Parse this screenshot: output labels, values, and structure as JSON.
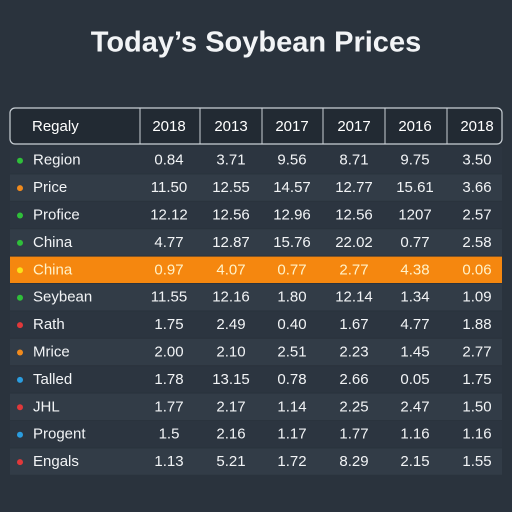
{
  "header": {
    "title": "Today’s Soybean Prices"
  },
  "table": {
    "columns": [
      "Regaly",
      "2018",
      "2013",
      "2017",
      "2017",
      "2016",
      "2018"
    ],
    "highlight_row": 4,
    "highlight_color": "#f5870f",
    "rows": [
      {
        "dot": "#2fbf3a",
        "cells": [
          "Region",
          "0.84",
          "3.71",
          "9.56",
          "8.71",
          "9.75",
          "3.50"
        ]
      },
      {
        "dot": "#f08a1c",
        "cells": [
          "Price",
          "11.50",
          "12.55",
          "14.57",
          "12.77",
          "15.61",
          "3.66"
        ]
      },
      {
        "dot": "#2fbf3a",
        "cells": [
          "Profice",
          "12.12",
          "12.56",
          "12.96",
          "12.56",
          "1207",
          "2.57"
        ]
      },
      {
        "dot": "#2fbf3a",
        "cells": [
          "China",
          "4.77",
          "12.87",
          "15.76",
          "22.02",
          "0.77",
          "2.58"
        ]
      },
      {
        "dot": "#f7e21a",
        "cells": [
          "China",
          "0.97",
          "4.07",
          "0.77",
          "2.77",
          "4.38",
          "0.06"
        ]
      },
      {
        "dot": "#2fbf3a",
        "cells": [
          "Seybean",
          "11.55",
          "12.16",
          "1.80",
          "12.14",
          "1.34",
          "1.09"
        ]
      },
      {
        "dot": "#e0383a",
        "cells": [
          "Rath",
          "1.75",
          "2.49",
          "0.40",
          "1.67",
          "4.77",
          "1.88"
        ]
      },
      {
        "dot": "#f08a1c",
        "cells": [
          "Mrice",
          "2.00",
          "2.10",
          "2.51",
          "2.23",
          "1.45",
          "2.77"
        ]
      },
      {
        "dot": "#2a9de0",
        "cells": [
          "Talled",
          "1.78",
          "13.15",
          "0.78",
          "2.66",
          "0.05",
          "1.75"
        ]
      },
      {
        "dot": "#e0383a",
        "cells": [
          "JHL",
          "1.77",
          "2.17",
          "1.14",
          "2.25",
          "2.47",
          "1.50"
        ]
      },
      {
        "dot": "#2a9de0",
        "cells": [
          "Progent",
          "1.5",
          "2.16",
          "1.17",
          "1.77",
          "1.16",
          "1.16"
        ]
      },
      {
        "dot": "#e0383a",
        "cells": [
          "Engals",
          "1.13",
          "5.21",
          "1.72",
          "8.29",
          "2.15",
          "1.55"
        ]
      }
    ]
  }
}
